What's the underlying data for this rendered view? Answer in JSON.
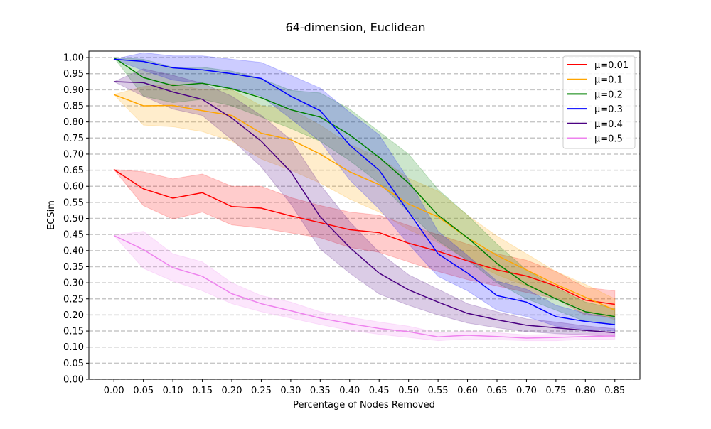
{
  "chart_data": {
    "type": "line",
    "title": "64-dimension, Euclidean",
    "xlabel": "Percentage of Nodes Removed",
    "ylabel": "ECSim",
    "xlim": [
      -0.0425,
      0.8925
    ],
    "ylim": [
      0.0,
      1.02
    ],
    "grid": "horizontal dashed",
    "legend_position": "top-right",
    "x": [
      0.0,
      0.05,
      0.1,
      0.15,
      0.2,
      0.25,
      0.3,
      0.35,
      0.4,
      0.45,
      0.5,
      0.55,
      0.6,
      0.65,
      0.7,
      0.75,
      0.8,
      0.85
    ],
    "x_tick_labels": [
      "0.00",
      "0.05",
      "0.10",
      "0.15",
      "0.20",
      "0.25",
      "0.30",
      "0.35",
      "0.40",
      "0.45",
      "0.50",
      "0.55",
      "0.60",
      "0.65",
      "0.70",
      "0.75",
      "0.80",
      "0.85"
    ],
    "y_ticks": [
      0.0,
      0.05,
      0.1,
      0.15,
      0.2,
      0.25,
      0.3,
      0.35,
      0.4,
      0.45,
      0.5,
      0.55,
      0.6,
      0.65,
      0.7,
      0.75,
      0.8,
      0.85,
      0.9,
      0.95,
      1.0
    ],
    "y_tick_labels": [
      "0.00",
      "0.05",
      "0.10",
      "0.15",
      "0.20",
      "0.25",
      "0.30",
      "0.35",
      "0.40",
      "0.45",
      "0.50",
      "0.55",
      "0.60",
      "0.65",
      "0.70",
      "0.75",
      "0.80",
      "0.85",
      "0.90",
      "0.95",
      "1.00"
    ],
    "series": [
      {
        "name": "μ=0.01",
        "color": "#ff0000",
        "values": [
          0.652,
          0.592,
          0.563,
          0.58,
          0.537,
          0.532,
          0.508,
          0.487,
          0.465,
          0.456,
          0.423,
          0.398,
          0.368,
          0.34,
          0.321,
          0.29,
          0.246,
          0.233
        ],
        "lower": [
          0.652,
          0.54,
          0.498,
          0.52,
          0.48,
          0.47,
          0.455,
          0.44,
          0.41,
          0.395,
          0.365,
          0.335,
          0.31,
          0.29,
          0.27,
          0.25,
          0.2,
          0.193
        ],
        "upper": [
          0.652,
          0.645,
          0.623,
          0.638,
          0.6,
          0.6,
          0.565,
          0.54,
          0.52,
          0.51,
          0.478,
          0.45,
          0.42,
          0.39,
          0.37,
          0.335,
          0.285,
          0.275
        ]
      },
      {
        "name": "μ=0.1",
        "color": "#ffa500",
        "values": [
          0.885,
          0.85,
          0.851,
          0.835,
          0.82,
          0.765,
          0.745,
          0.7,
          0.645,
          0.605,
          0.545,
          0.505,
          0.44,
          0.385,
          0.34,
          0.295,
          0.255,
          0.215
        ],
        "lower": [
          0.885,
          0.79,
          0.785,
          0.77,
          0.74,
          0.685,
          0.65,
          0.61,
          0.56,
          0.52,
          0.465,
          0.425,
          0.37,
          0.325,
          0.29,
          0.255,
          0.215,
          0.185
        ],
        "upper": [
          0.885,
          0.91,
          0.918,
          0.9,
          0.9,
          0.85,
          0.84,
          0.79,
          0.73,
          0.69,
          0.625,
          0.585,
          0.51,
          0.445,
          0.39,
          0.335,
          0.295,
          0.25
        ]
      },
      {
        "name": "μ=0.2",
        "color": "#008000",
        "values": [
          1.0,
          0.938,
          0.913,
          0.92,
          0.903,
          0.875,
          0.838,
          0.815,
          0.76,
          0.69,
          0.61,
          0.51,
          0.44,
          0.36,
          0.295,
          0.25,
          0.21,
          0.195
        ],
        "lower": [
          1.0,
          0.88,
          0.86,
          0.87,
          0.85,
          0.815,
          0.78,
          0.74,
          0.68,
          0.61,
          0.52,
          0.43,
          0.37,
          0.3,
          0.25,
          0.215,
          0.18,
          0.17
        ],
        "upper": [
          1.0,
          0.995,
          0.97,
          0.97,
          0.958,
          0.935,
          0.898,
          0.89,
          0.84,
          0.77,
          0.7,
          0.59,
          0.51,
          0.42,
          0.34,
          0.285,
          0.24,
          0.22
        ]
      },
      {
        "name": "μ=0.3",
        "color": "#0000ff",
        "values": [
          0.995,
          0.988,
          0.968,
          0.962,
          0.95,
          0.935,
          0.88,
          0.835,
          0.728,
          0.65,
          0.52,
          0.39,
          0.33,
          0.26,
          0.24,
          0.195,
          0.18,
          0.17
        ],
        "lower": [
          0.995,
          0.96,
          0.93,
          0.92,
          0.905,
          0.88,
          0.81,
          0.74,
          0.62,
          0.53,
          0.42,
          0.32,
          0.275,
          0.215,
          0.195,
          0.165,
          0.155,
          0.15
        ],
        "upper": [
          0.995,
          1.015,
          1.005,
          1.005,
          0.995,
          0.985,
          0.945,
          0.905,
          0.83,
          0.76,
          0.62,
          0.46,
          0.385,
          0.305,
          0.28,
          0.23,
          0.205,
          0.19
        ]
      },
      {
        "name": "μ=0.4",
        "color": "#4b0082",
        "values": [
          0.925,
          0.922,
          0.893,
          0.87,
          0.812,
          0.74,
          0.645,
          0.505,
          0.41,
          0.33,
          0.278,
          0.24,
          0.205,
          0.185,
          0.168,
          0.16,
          0.152,
          0.145
        ],
        "lower": [
          0.925,
          0.88,
          0.84,
          0.82,
          0.745,
          0.66,
          0.545,
          0.405,
          0.33,
          0.265,
          0.23,
          0.2,
          0.175,
          0.16,
          0.148,
          0.142,
          0.138,
          0.133
        ],
        "upper": [
          0.925,
          0.965,
          0.945,
          0.92,
          0.88,
          0.82,
          0.745,
          0.605,
          0.49,
          0.395,
          0.325,
          0.28,
          0.235,
          0.21,
          0.188,
          0.178,
          0.166,
          0.157
        ]
      },
      {
        "name": "μ=0.5",
        "color": "#ee82ee",
        "values": [
          0.447,
          0.403,
          0.347,
          0.32,
          0.266,
          0.235,
          0.213,
          0.19,
          0.173,
          0.158,
          0.148,
          0.132,
          0.137,
          0.133,
          0.128,
          0.13,
          0.133,
          0.135
        ],
        "lower": [
          0.447,
          0.345,
          0.305,
          0.275,
          0.235,
          0.21,
          0.19,
          0.17,
          0.152,
          0.14,
          0.13,
          0.12,
          0.125,
          0.123,
          0.12,
          0.12,
          0.124,
          0.125
        ],
        "upper": [
          0.447,
          0.46,
          0.39,
          0.365,
          0.3,
          0.26,
          0.24,
          0.21,
          0.193,
          0.178,
          0.165,
          0.145,
          0.15,
          0.145,
          0.138,
          0.14,
          0.142,
          0.145
        ]
      }
    ]
  }
}
